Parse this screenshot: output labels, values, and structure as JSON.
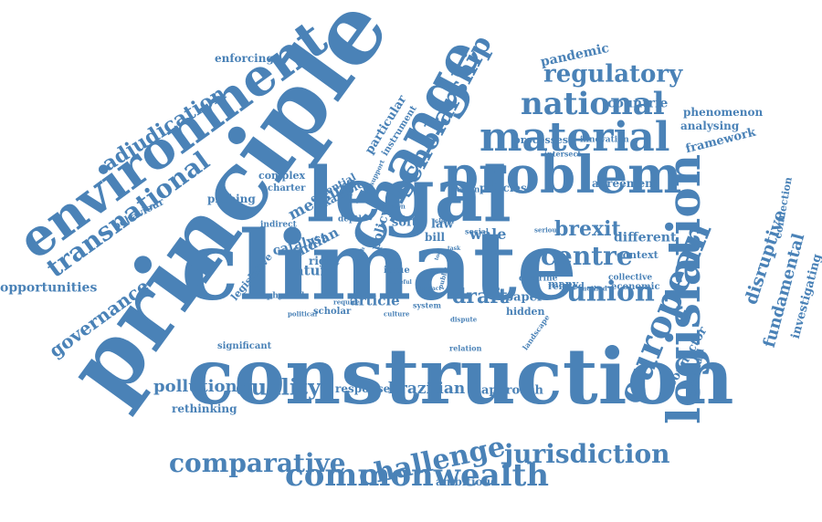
{
  "color": "#4a82b7",
  "words": [
    "climate",
    "construction",
    "principle",
    "legal",
    "change",
    "environment",
    "problem",
    "legislation",
    "european",
    "material",
    "national",
    "scholarship",
    "transnational",
    "commonwealth",
    "jurisdiction",
    "comparative",
    "challenge",
    "regulatory",
    "union",
    "centre",
    "brexit",
    "adjudication",
    "governance",
    "opportunities",
    "pandemic",
    "countrie",
    "phenomenon",
    "analysing",
    "framework",
    "fundamental",
    "investigating",
    "connection",
    "disruptive",
    "quality",
    "pollution",
    "brazilian",
    "measure",
    "indian",
    "draft",
    "article",
    "agreement",
    "different",
    "connector",
    "individual",
    "enforcing",
    "particular",
    "instrument",
    "processes",
    "innovation",
    "collective",
    "economic",
    "context",
    "policies",
    "action",
    "policy",
    "behaviour",
    "probing",
    "complex",
    "charter",
    "essential",
    "example",
    "catalyst",
    "nature",
    "right",
    "legislative",
    "physical",
    "scholar",
    "political",
    "significant",
    "rethinking",
    "response",
    "approach",
    "ambitious",
    "hidden",
    "paper",
    "many",
    "related",
    "method",
    "doctrine",
    "social",
    "law",
    "bill",
    "wale",
    "soft",
    "issue",
    "public",
    "system",
    "culture",
    "require",
    "dispute",
    "relation",
    "landscape",
    "intersect",
    "serious",
    "lawyer",
    "clean",
    "depth",
    "govern",
    "indirect",
    "task",
    "support",
    "health",
    "actor",
    "impact",
    "useful",
    "tool"
  ]
}
